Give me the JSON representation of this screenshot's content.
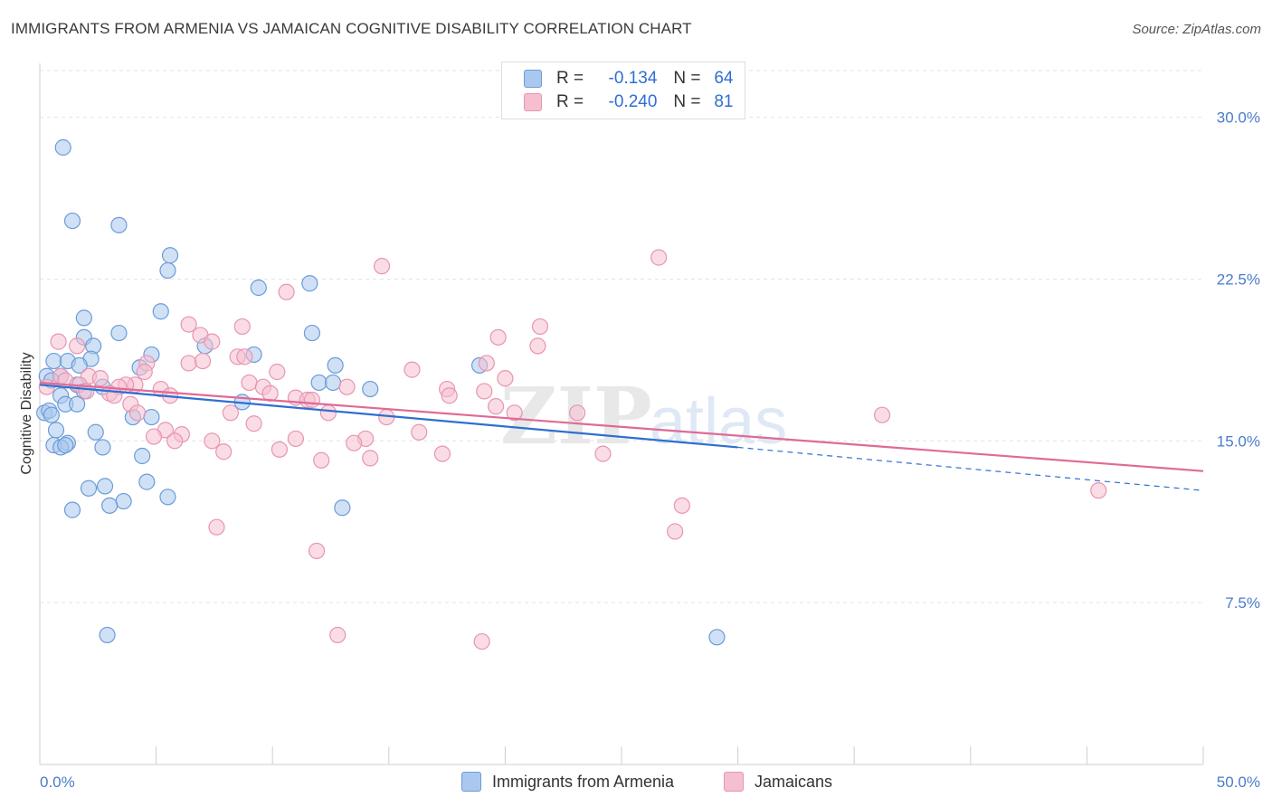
{
  "title": "IMMIGRANTS FROM ARMENIA VS JAMAICAN COGNITIVE DISABILITY CORRELATION CHART",
  "source": "Source: ZipAtlas.com",
  "watermark": {
    "zip": "ZIP",
    "atlas": "atlas"
  },
  "legend": {
    "r_label": "R =",
    "n_label": "N =",
    "rows": [
      {
        "r": "-0.134",
        "n": "64"
      },
      {
        "r": "-0.240",
        "n": "81"
      }
    ]
  },
  "colors": {
    "blue_fill": "#aac8ef",
    "blue_stroke": "#6b9bd8",
    "blue_line": "#2e6fd1",
    "pink_fill": "#f5bfd0",
    "pink_stroke": "#e895b0",
    "pink_line": "#e06a95",
    "tick_text": "#4a7cc9"
  },
  "chart_data": {
    "type": "scatter",
    "xlabel": "",
    "ylabel": "Cognitive Disability",
    "xlim": [
      0,
      50
    ],
    "ylim": [
      0,
      32.5
    ],
    "x_tick_labels": [
      "0.0%",
      "50.0%"
    ],
    "y_ticks": [
      7.5,
      15.0,
      22.5,
      30.0
    ],
    "y_tick_labels": [
      "7.5%",
      "15.0%",
      "22.5%",
      "30.0%"
    ],
    "grid": "horizontal dashed",
    "legend_position": "bottom",
    "series": [
      {
        "name": "Immigrants from Armenia",
        "color": "#aac8ef",
        "trend": {
          "x": [
            0,
            30,
            50
          ],
          "y": [
            17.6,
            14.7,
            12.7
          ],
          "solid_until": 30
        },
        "points": [
          [
            1.0,
            28.6
          ],
          [
            1.4,
            25.2
          ],
          [
            3.4,
            25.0
          ],
          [
            5.6,
            23.6
          ],
          [
            5.5,
            22.9
          ],
          [
            9.4,
            22.1
          ],
          [
            11.6,
            22.3
          ],
          [
            5.2,
            21.0
          ],
          [
            1.9,
            20.7
          ],
          [
            3.4,
            20.0
          ],
          [
            11.7,
            20.0
          ],
          [
            1.9,
            19.8
          ],
          [
            2.3,
            19.4
          ],
          [
            7.1,
            19.4
          ],
          [
            4.8,
            19.0
          ],
          [
            9.2,
            19.0
          ],
          [
            0.6,
            18.7
          ],
          [
            1.2,
            18.7
          ],
          [
            2.2,
            18.8
          ],
          [
            1.7,
            18.5
          ],
          [
            12.7,
            18.5
          ],
          [
            18.9,
            18.5
          ],
          [
            4.3,
            18.4
          ],
          [
            0.3,
            18.0
          ],
          [
            0.9,
            18.0
          ],
          [
            0.5,
            17.8
          ],
          [
            12.0,
            17.7
          ],
          [
            12.6,
            17.7
          ],
          [
            1.6,
            17.6
          ],
          [
            2.7,
            17.5
          ],
          [
            14.2,
            17.4
          ],
          [
            1.9,
            17.3
          ],
          [
            0.9,
            17.1
          ],
          [
            8.7,
            16.8
          ],
          [
            1.1,
            16.7
          ],
          [
            1.6,
            16.7
          ],
          [
            0.2,
            16.3
          ],
          [
            0.4,
            16.4
          ],
          [
            0.5,
            16.2
          ],
          [
            4.0,
            16.1
          ],
          [
            4.8,
            16.1
          ],
          [
            0.7,
            15.5
          ],
          [
            2.4,
            15.4
          ],
          [
            1.2,
            14.9
          ],
          [
            0.6,
            14.8
          ],
          [
            0.9,
            14.7
          ],
          [
            1.1,
            14.8
          ],
          [
            2.7,
            14.7
          ],
          [
            4.4,
            14.3
          ],
          [
            4.6,
            13.1
          ],
          [
            2.1,
            12.8
          ],
          [
            2.8,
            12.9
          ],
          [
            5.5,
            12.4
          ],
          [
            3.6,
            12.2
          ],
          [
            3.0,
            12.0
          ],
          [
            13.0,
            11.9
          ],
          [
            1.4,
            11.8
          ],
          [
            2.9,
            6.0
          ],
          [
            29.1,
            5.9
          ]
        ]
      },
      {
        "name": "Jamaicans",
        "color": "#f5bfd0",
        "trend": {
          "x": [
            0,
            50
          ],
          "y": [
            17.7,
            13.6
          ]
        },
        "points": [
          [
            26.6,
            23.5
          ],
          [
            14.7,
            23.1
          ],
          [
            10.6,
            21.9
          ],
          [
            21.5,
            20.3
          ],
          [
            6.4,
            20.4
          ],
          [
            8.7,
            20.3
          ],
          [
            6.9,
            19.9
          ],
          [
            19.7,
            19.8
          ],
          [
            0.8,
            19.6
          ],
          [
            7.4,
            19.6
          ],
          [
            1.6,
            19.4
          ],
          [
            21.4,
            19.4
          ],
          [
            8.5,
            18.9
          ],
          [
            8.8,
            18.9
          ],
          [
            6.4,
            18.6
          ],
          [
            7.0,
            18.7
          ],
          [
            4.6,
            18.6
          ],
          [
            19.2,
            18.6
          ],
          [
            16.0,
            18.3
          ],
          [
            10.2,
            18.2
          ],
          [
            4.5,
            18.2
          ],
          [
            0.9,
            18.0
          ],
          [
            2.1,
            18.0
          ],
          [
            1.1,
            17.8
          ],
          [
            2.6,
            17.9
          ],
          [
            20.0,
            17.9
          ],
          [
            4.1,
            17.6
          ],
          [
            9.0,
            17.7
          ],
          [
            1.7,
            17.6
          ],
          [
            3.7,
            17.6
          ],
          [
            3.4,
            17.5
          ],
          [
            0.3,
            17.5
          ],
          [
            9.6,
            17.5
          ],
          [
            13.2,
            17.5
          ],
          [
            5.2,
            17.4
          ],
          [
            2.0,
            17.3
          ],
          [
            17.5,
            17.4
          ],
          [
            19.1,
            17.3
          ],
          [
            3.0,
            17.2
          ],
          [
            9.9,
            17.2
          ],
          [
            3.2,
            17.1
          ],
          [
            5.6,
            17.1
          ],
          [
            17.6,
            17.1
          ],
          [
            11.0,
            17.0
          ],
          [
            11.5,
            16.9
          ],
          [
            11.7,
            16.9
          ],
          [
            3.9,
            16.7
          ],
          [
            19.6,
            16.6
          ],
          [
            8.2,
            16.3
          ],
          [
            12.4,
            16.3
          ],
          [
            4.2,
            16.3
          ],
          [
            20.4,
            16.3
          ],
          [
            23.1,
            16.3
          ],
          [
            36.2,
            16.2
          ],
          [
            14.9,
            16.1
          ],
          [
            9.2,
            15.8
          ],
          [
            5.4,
            15.5
          ],
          [
            16.3,
            15.4
          ],
          [
            6.1,
            15.3
          ],
          [
            4.9,
            15.2
          ],
          [
            14.0,
            15.1
          ],
          [
            11.0,
            15.1
          ],
          [
            5.8,
            15.0
          ],
          [
            7.4,
            15.0
          ],
          [
            13.5,
            14.9
          ],
          [
            7.9,
            14.5
          ],
          [
            10.3,
            14.6
          ],
          [
            17.3,
            14.4
          ],
          [
            24.2,
            14.4
          ],
          [
            14.2,
            14.2
          ],
          [
            12.1,
            14.1
          ],
          [
            45.5,
            12.7
          ],
          [
            27.6,
            12.0
          ],
          [
            7.6,
            11.0
          ],
          [
            27.3,
            10.8
          ],
          [
            11.9,
            9.9
          ],
          [
            12.8,
            6.0
          ],
          [
            19.0,
            5.7
          ]
        ]
      }
    ]
  },
  "bottom_legend": [
    "Immigrants from Armenia",
    "Jamaicans"
  ]
}
